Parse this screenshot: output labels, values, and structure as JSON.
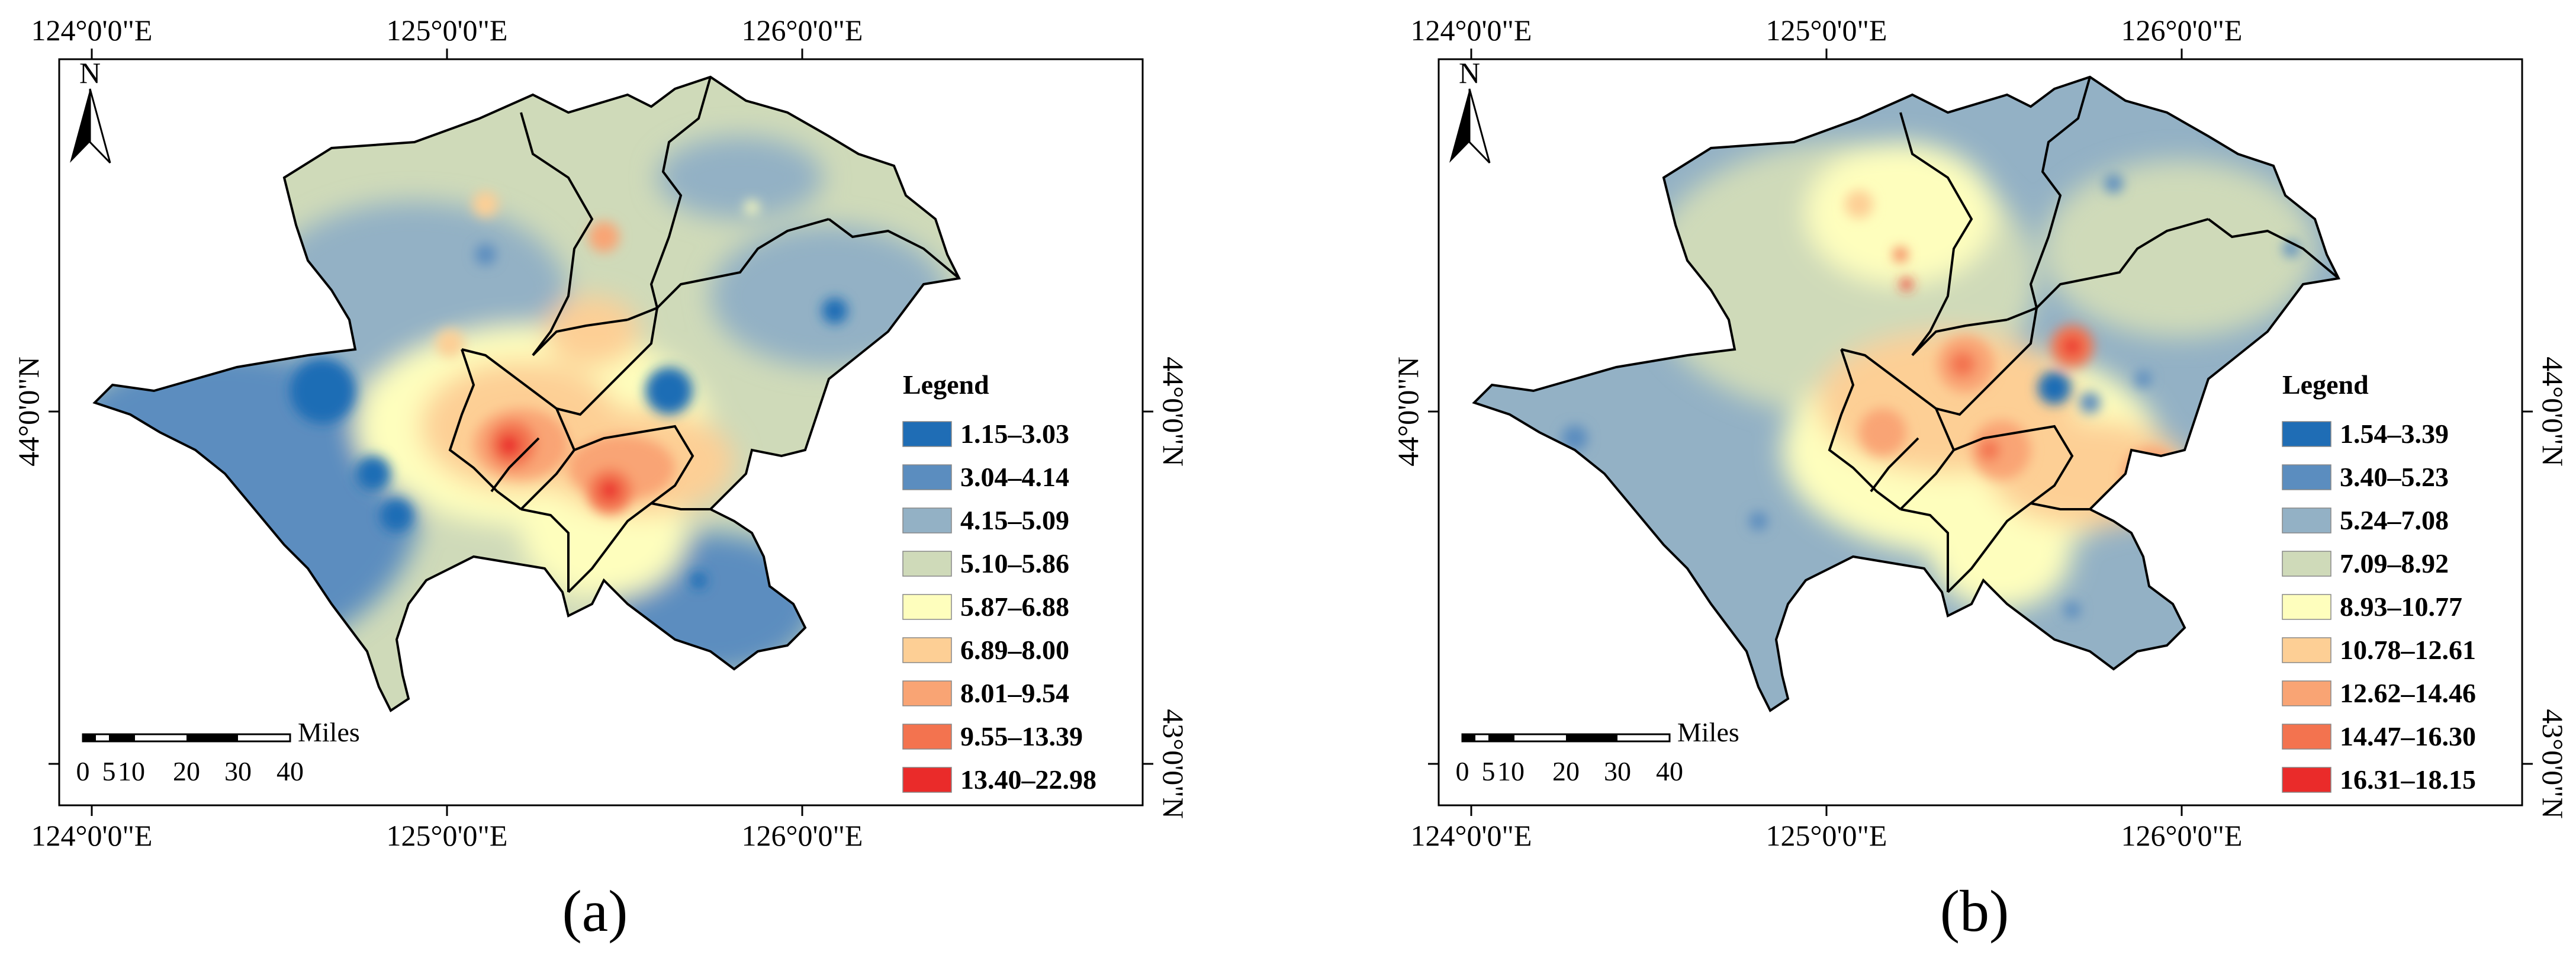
{
  "figure": {
    "panels": [
      {
        "caption": "(a)",
        "lon_ticks": [
          "124°0'0\"E",
          "125°0'0\"E",
          "126°0'0\"E"
        ],
        "lat_ticks": [
          "44°0'0\"N",
          "43°0'0\"N"
        ],
        "north_label": "N",
        "scale_bar": {
          "unit": "Miles",
          "ticks": [
            "0",
            "5",
            "10",
            "20",
            "30",
            "40"
          ]
        },
        "legend": {
          "title": "Legend",
          "classes": [
            {
              "label": "1.15–3.03",
              "color": "#1f6db5"
            },
            {
              "label": "3.04–4.14",
              "color": "#5b8dbf"
            },
            {
              "label": "4.15–5.09",
              "color": "#93b1c5"
            },
            {
              "label": "5.10–5.86",
              "color": "#cfdab9"
            },
            {
              "label": "5.87–6.88",
              "color": "#fefebd"
            },
            {
              "label": "6.89–8.00",
              "color": "#fdcf95"
            },
            {
              "label": "8.01–9.54",
              "color": "#f9a474"
            },
            {
              "label": "9.55–13.39",
              "color": "#f3734f"
            },
            {
              "label": "13.40–22.98",
              "color": "#ea2b2a"
            }
          ]
        }
      },
      {
        "caption": "(b)",
        "lon_ticks": [
          "124°0'0\"E",
          "125°0'0\"E",
          "126°0'0\"E"
        ],
        "lat_ticks": [
          "44°0'0\"N",
          "43°0'0\"N"
        ],
        "north_label": "N",
        "scale_bar": {
          "unit": "Miles",
          "ticks": [
            "0",
            "5",
            "10",
            "20",
            "30",
            "40"
          ]
        },
        "legend": {
          "title": "Legend",
          "classes": [
            {
              "label": "1.54–3.39",
              "color": "#1f6db5"
            },
            {
              "label": "3.40–5.23",
              "color": "#5b8dbf"
            },
            {
              "label": "5.24–7.08",
              "color": "#93b1c5"
            },
            {
              "label": "7.09–8.92",
              "color": "#cfdab9"
            },
            {
              "label": "8.93–10.77",
              "color": "#fefebd"
            },
            {
              "label": "10.78–12.61",
              "color": "#fdcf95"
            },
            {
              "label": "12.62–14.46",
              "color": "#f9a474"
            },
            {
              "label": "14.47–16.30",
              "color": "#f3734f"
            },
            {
              "label": "16.31–18.15",
              "color": "#ea2b2a"
            }
          ]
        }
      }
    ]
  }
}
